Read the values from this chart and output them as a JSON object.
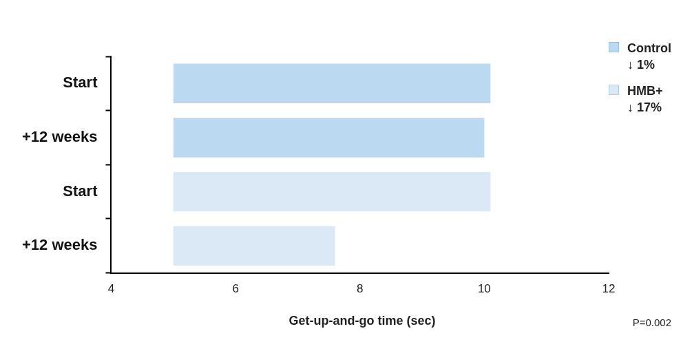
{
  "chart_data": {
    "type": "bar",
    "orientation": "horizontal",
    "categories": [
      "Start",
      "+12 weeks",
      "Start",
      "+12 weeks"
    ],
    "series": [
      {
        "name": "Control\n↓ 1%",
        "color": "#bcd9f2",
        "values": [
          5.1,
          5.0,
          null,
          null
        ],
        "base": [
          5,
          5,
          null,
          null
        ]
      },
      {
        "name": "HMB+\n↓ 17%",
        "color": "#dbe9f7",
        "values": [
          null,
          null,
          5.1,
          2.6
        ],
        "base": [
          null,
          null,
          5,
          5
        ]
      }
    ],
    "xlabel": "Get-up-and-go time (sec)",
    "xlim": [
      4,
      12
    ],
    "xticks": [
      4,
      6,
      8,
      10,
      12
    ],
    "grid": false,
    "legend": "top right",
    "annotations": [
      "P=0.002"
    ]
  }
}
